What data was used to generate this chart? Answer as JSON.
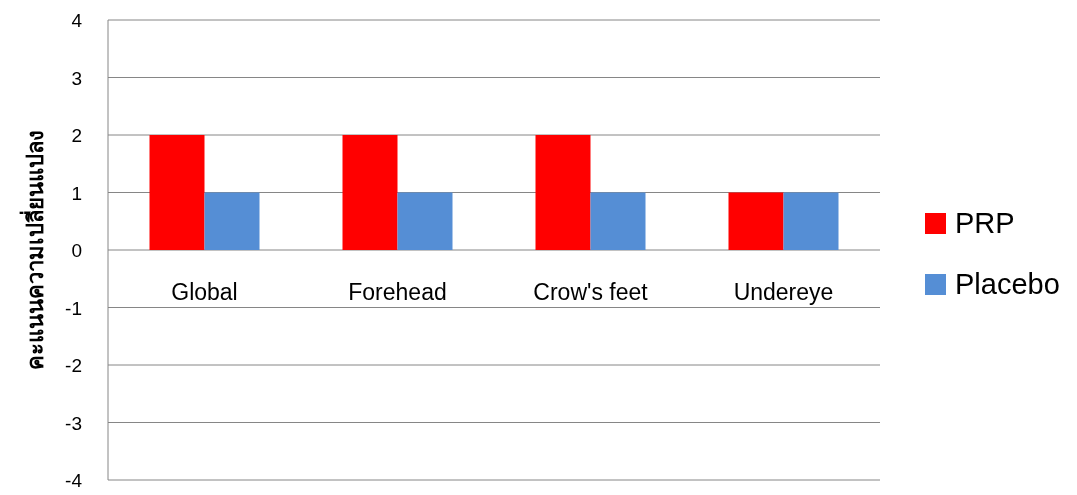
{
  "chart_data": {
    "type": "bar",
    "ylabel": "คะแนนความเปลี่ยนแปลง",
    "categories": [
      "Global",
      "Forehead",
      "Crow's feet",
      "Undereye"
    ],
    "series": [
      {
        "name": "PRP",
        "color": "#ff0000",
        "values": [
          2,
          2,
          2,
          1
        ]
      },
      {
        "name": "Placebo",
        "color": "#558ed5",
        "values": [
          1,
          1,
          1,
          1
        ]
      }
    ],
    "ylim": [
      -4,
      4
    ],
    "yticks": [
      -4,
      -3,
      -2,
      -1,
      0,
      1,
      2,
      3,
      4
    ],
    "grid": "y",
    "legend": "right"
  }
}
